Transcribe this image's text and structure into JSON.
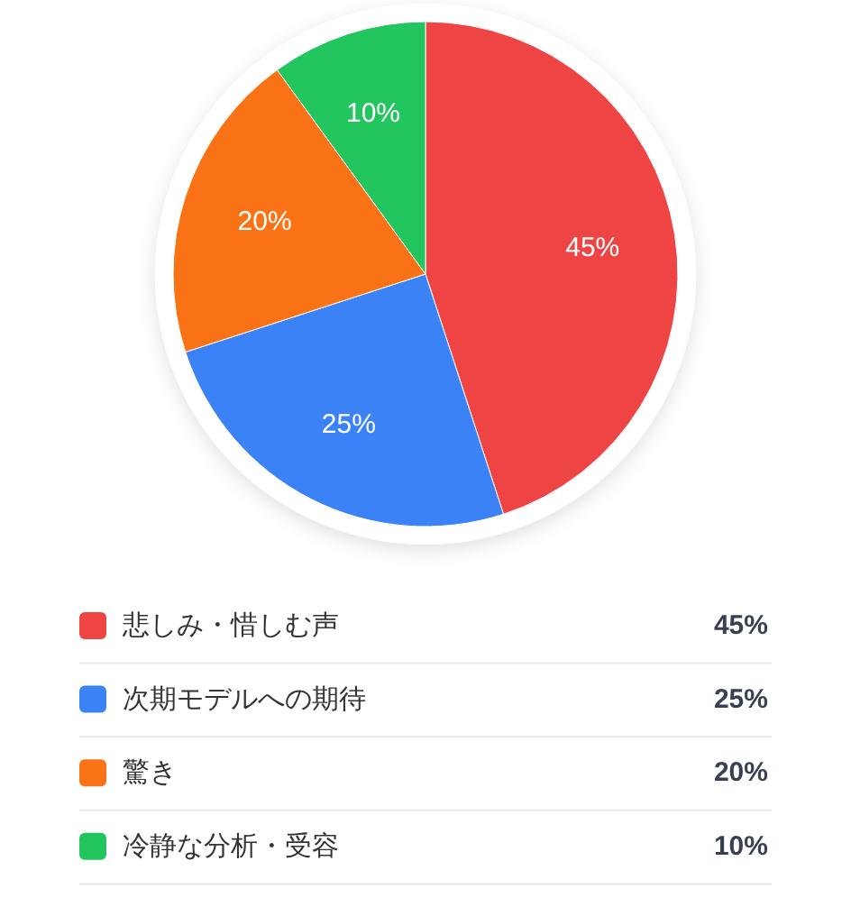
{
  "chart_data": {
    "type": "pie",
    "categories": [
      "悲しみ・惜しむ声",
      "次期モデルへの期待",
      "驚き",
      "冷静な分析・受容"
    ],
    "values": [
      45,
      25,
      20,
      10
    ],
    "colors": [
      "#ef4444",
      "#3b82f6",
      "#f97316",
      "#22c55e"
    ],
    "value_labels": [
      "45%",
      "25%",
      "20%",
      "10%"
    ],
    "legend": "bottom"
  }
}
